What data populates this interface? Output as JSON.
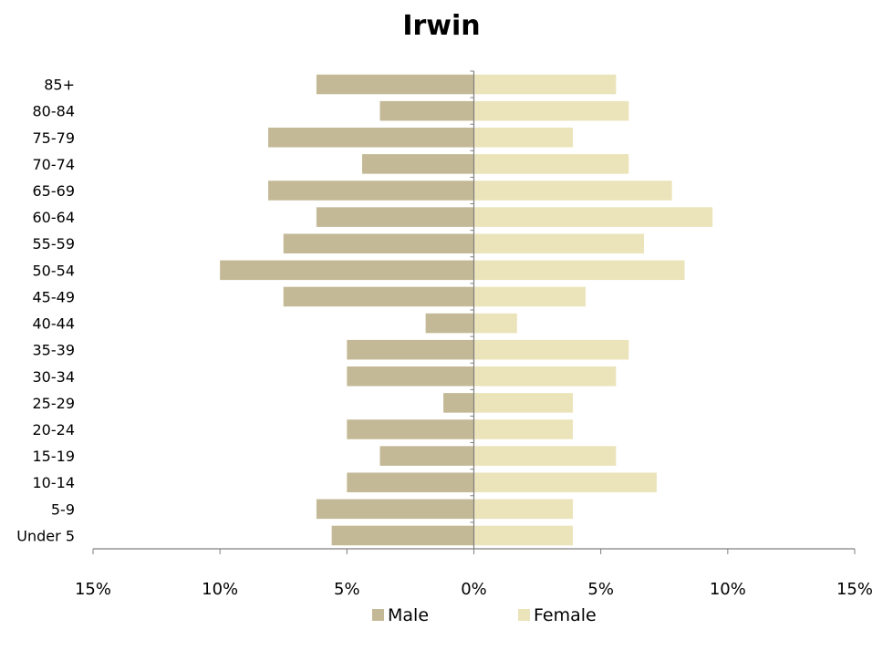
{
  "chart_data": {
    "type": "bar",
    "orientation": "horizontal",
    "title": "Irwin",
    "categories": [
      "Under 5",
      "5-9",
      "10-14",
      "15-19",
      "20-24",
      "25-29",
      "30-34",
      "35-39",
      "40-44",
      "45-49",
      "50-54",
      "55-59",
      "60-64",
      "65-69",
      "70-74",
      "75-79",
      "80-84",
      "85+"
    ],
    "series": [
      {
        "name": "Male",
        "color": "#c4b996",
        "direction": "left",
        "values": [
          5.6,
          6.2,
          5.0,
          3.7,
          5.0,
          1.2,
          5.0,
          5.0,
          1.9,
          7.5,
          10.0,
          7.5,
          6.2,
          8.1,
          4.4,
          8.1,
          3.7,
          6.2
        ]
      },
      {
        "name": "Female",
        "color": "#ebe3b9",
        "direction": "right",
        "values": [
          3.9,
          3.9,
          7.2,
          5.6,
          3.9,
          3.9,
          5.6,
          6.1,
          1.7,
          4.4,
          8.3,
          6.7,
          9.4,
          7.8,
          6.1,
          3.9,
          6.1,
          5.6
        ]
      }
    ],
    "xlim": [
      -15,
      15
    ],
    "xticks": [
      -15,
      -10,
      -5,
      0,
      5,
      10,
      15
    ],
    "xtick_labels": [
      "15%",
      "10%",
      "5%",
      "0%",
      "5%",
      "10%",
      "15%"
    ],
    "xlabel": "",
    "ylabel": "",
    "grid": false,
    "legend_position": "bottom",
    "axis_color": "#7f7f7f"
  }
}
